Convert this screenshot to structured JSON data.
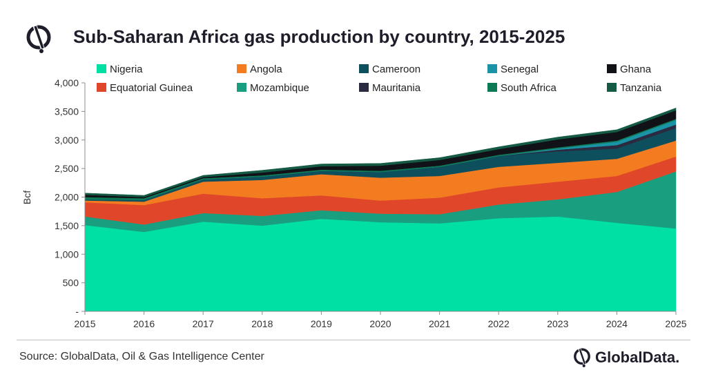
{
  "header": {
    "title": "Sub-Saharan Africa gas production by country, 2015-2025"
  },
  "footer": {
    "source": "Source: GlobalData, Oil & Gas Intelligence Center",
    "brand": "GlobalData."
  },
  "chart_data": {
    "type": "area",
    "stacked": true,
    "title": "Sub-Saharan Africa gas production by country, 2015-2025",
    "xlabel": "",
    "ylabel": "Bcf",
    "ylim": [
      0,
      4000
    ],
    "yticks": [
      0,
      500,
      1000,
      1500,
      2000,
      2500,
      3000,
      3500,
      4000
    ],
    "ytick_labels": [
      "-",
      "500",
      "1,000",
      "1,500",
      "2,000",
      "2,500",
      "3,000",
      "3,500",
      "4,000"
    ],
    "x": [
      "2015",
      "2016",
      "2017",
      "2018",
      "2019",
      "2020",
      "2021",
      "2022",
      "2023",
      "2024",
      "2025"
    ],
    "grid": false,
    "legend_position": "top",
    "series": [
      {
        "name": "Nigeria",
        "color": "#00e0a4",
        "values": [
          1510,
          1390,
          1570,
          1500,
          1620,
          1560,
          1540,
          1630,
          1660,
          1550,
          1450
        ]
      },
      {
        "name": "Mozambique",
        "color": "#1a9e80",
        "values": [
          150,
          130,
          150,
          170,
          150,
          150,
          160,
          240,
          300,
          540,
          1000
        ]
      },
      {
        "name": "Equatorial Guinea",
        "color": "#e0472a",
        "values": [
          250,
          340,
          340,
          310,
          260,
          230,
          290,
          300,
          310,
          280,
          260
        ]
      },
      {
        "name": "Angola",
        "color": "#f47c20",
        "values": [
          30,
          60,
          210,
          320,
          370,
          400,
          380,
          360,
          330,
          300,
          280
        ]
      },
      {
        "name": "Cameroon",
        "color": "#0d4f5c",
        "values": [
          20,
          30,
          40,
          60,
          60,
          100,
          160,
          190,
          200,
          180,
          220
        ]
      },
      {
        "name": "Mauritania",
        "color": "#2a2a40",
        "values": [
          0,
          0,
          0,
          0,
          0,
          0,
          0,
          0,
          30,
          60,
          60
        ]
      },
      {
        "name": "Senegal",
        "color": "#1a93a6",
        "values": [
          0,
          0,
          0,
          0,
          0,
          0,
          0,
          0,
          20,
          60,
          80
        ]
      },
      {
        "name": "South Africa",
        "color": "#0e7a55",
        "values": [
          40,
          30,
          20,
          20,
          20,
          20,
          20,
          20,
          20,
          20,
          20
        ]
      },
      {
        "name": "Ghana",
        "color": "#111118",
        "values": [
          40,
          20,
          20,
          50,
          60,
          90,
          100,
          100,
          140,
          150,
          150
        ]
      },
      {
        "name": "Tanzania",
        "color": "#155a45",
        "values": [
          30,
          30,
          30,
          40,
          40,
          40,
          40,
          40,
          40,
          40,
          40
        ]
      }
    ],
    "legend_order": [
      [
        "Nigeria",
        "Angola",
        "Cameroon",
        "Senegal",
        "Ghana"
      ],
      [
        "Equatorial Guinea",
        "Mozambique",
        "Mauritania",
        "South Africa",
        "Tanzania"
      ]
    ]
  }
}
